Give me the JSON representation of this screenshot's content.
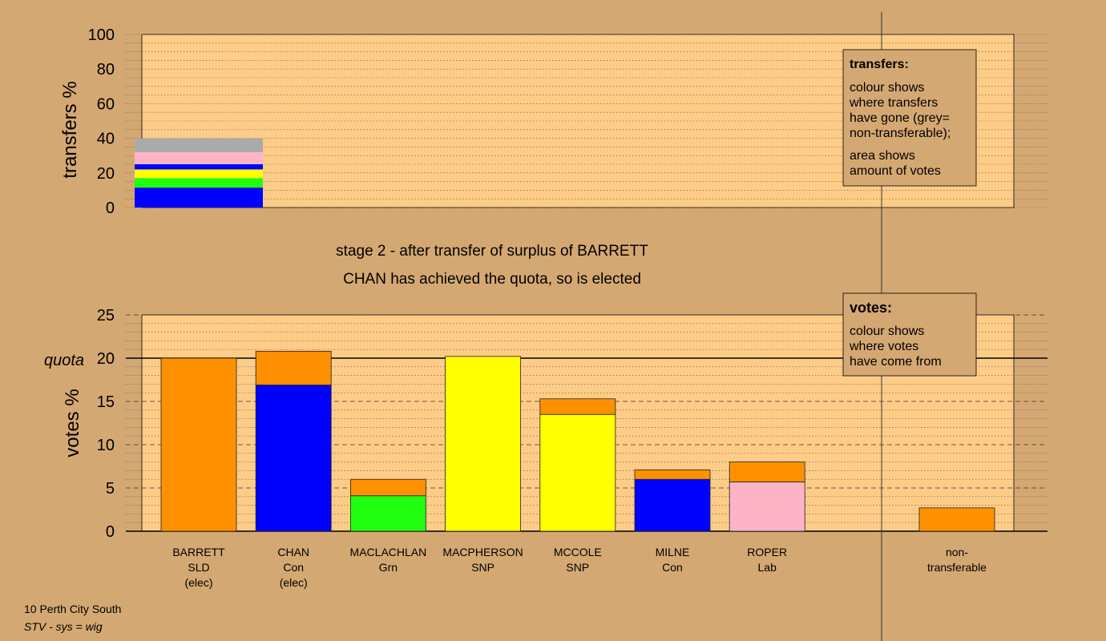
{
  "page": {
    "stage_line": "stage 2 - after transfer of surplus of BARRETT",
    "elected_line": "CHAN has achieved the quota, so is elected",
    "footer_line1": "10 Perth City South",
    "footer_line2": "STV - sys = wig"
  },
  "legends": {
    "transfers": {
      "title": "transfers:",
      "para1": [
        "colour shows",
        "where transfers",
        "have gone (grey=",
        "non-transferable);"
      ],
      "para2": [
        "area shows",
        "amount of votes"
      ]
    },
    "votes": {
      "title": "votes:",
      "para1": [
        "colour shows",
        "where votes",
        "have come from"
      ]
    }
  },
  "colors": {
    "background": "#d4a872",
    "plot_bg": "#ffcc88",
    "SLD": "#ff9100",
    "Con": "#0000ff",
    "Grn": "#22ff11",
    "SNP": "#ffff00",
    "Lab": "#ffb3c6",
    "nontransferable": "#aaaaaa"
  },
  "chart_data": [
    {
      "id": "transfers",
      "type": "bar",
      "ylabel": "transfers %",
      "ylim": [
        0,
        100
      ],
      "yticks": [
        0,
        20,
        40,
        60,
        80,
        100
      ],
      "grid": true,
      "bar": {
        "segments": [
          {
            "party": "Con",
            "value": 11.5
          },
          {
            "party": "Grn",
            "value": 5.5
          },
          {
            "party": "SNP",
            "value": 5.0
          },
          {
            "party": "Con",
            "value": 3.0
          },
          {
            "party": "Lab",
            "value": 7.0
          },
          {
            "party": "nontransferable",
            "value": 8.0
          }
        ]
      }
    },
    {
      "id": "votes",
      "type": "bar",
      "stacked": true,
      "ylabel": "votes %",
      "ylim": [
        0,
        25
      ],
      "yticks": [
        0,
        5,
        10,
        15,
        20,
        25
      ],
      "quota": 20,
      "quota_label": "quota",
      "grid": true,
      "categories": [
        {
          "lines": [
            "BARRETT",
            "SLD",
            "(elec)"
          ],
          "segments": [
            {
              "party": "SLD",
              "value": 20.0
            }
          ]
        },
        {
          "lines": [
            "CHAN",
            "Con",
            "(elec)"
          ],
          "segments": [
            {
              "party": "Con",
              "value": 16.9
            },
            {
              "party": "SLD",
              "value": 3.9
            }
          ]
        },
        {
          "lines": [
            "MACLACHLAN",
            "Grn"
          ],
          "segments": [
            {
              "party": "Grn",
              "value": 4.1
            },
            {
              "party": "SLD",
              "value": 1.9
            }
          ]
        },
        {
          "lines": [
            "MACPHERSON",
            "SNP"
          ],
          "segments": [
            {
              "party": "SNP",
              "value": 20.2
            }
          ]
        },
        {
          "lines": [
            "MCCOLE",
            "SNP"
          ],
          "segments": [
            {
              "party": "SNP",
              "value": 13.5
            },
            {
              "party": "SLD",
              "value": 1.8
            }
          ]
        },
        {
          "lines": [
            "MILNE",
            "Con"
          ],
          "segments": [
            {
              "party": "Con",
              "value": 6.0
            },
            {
              "party": "SLD",
              "value": 1.1
            }
          ]
        },
        {
          "lines": [
            "ROPER",
            "Lab"
          ],
          "segments": [
            {
              "party": "Lab",
              "value": 5.7
            },
            {
              "party": "SLD",
              "value": 2.3
            }
          ]
        }
      ],
      "nontransferable": {
        "lines": [
          "non-",
          "transferable"
        ],
        "segments": [
          {
            "party": "SLD",
            "value": 2.7
          }
        ]
      }
    }
  ]
}
